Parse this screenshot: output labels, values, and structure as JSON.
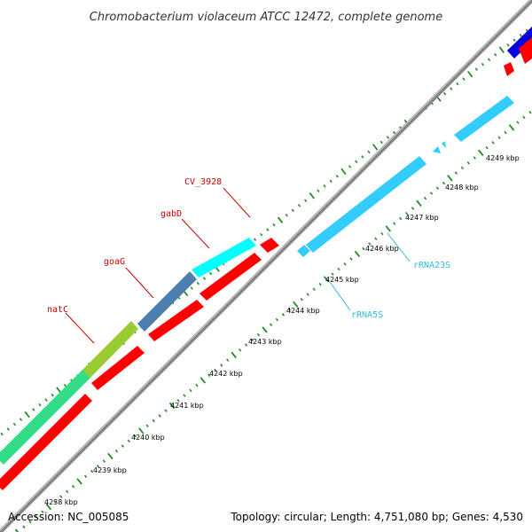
{
  "title": "Chromobacterium violaceum ATCC 12472, complete genome",
  "footer": {
    "accession": "Accession: NC_005085",
    "summary": "Topology: circular; Length: 4,751,080 bp; Genes: 4,530"
  },
  "tick_labels": [
    "4238 kbp",
    "4239 kbp",
    "4240 kbp",
    "4241 kbp",
    "4242 kbp",
    "4243 kbp",
    "4244 kbp",
    "4245 kbp",
    "4246 kbp",
    "4247 kbp",
    "4248 kbp",
    "4249 kbp"
  ],
  "gene_labels": [
    "natC",
    "goaG",
    "gabD",
    "CV_3928"
  ],
  "rna_labels": [
    "rRNA5S",
    "rRNA23S"
  ],
  "colors": {
    "forward_cds": "#ff0000",
    "reverse_cds": "#ff0000",
    "rrna": "#33ccff",
    "backbone": "#888888",
    "ticks": "#228b22",
    "natC": "#99cc33",
    "goaG": "#4d7fae",
    "gabD": "#00ffff",
    "segment_green": "#33dd88",
    "segment_blue": "#0000dd"
  }
}
